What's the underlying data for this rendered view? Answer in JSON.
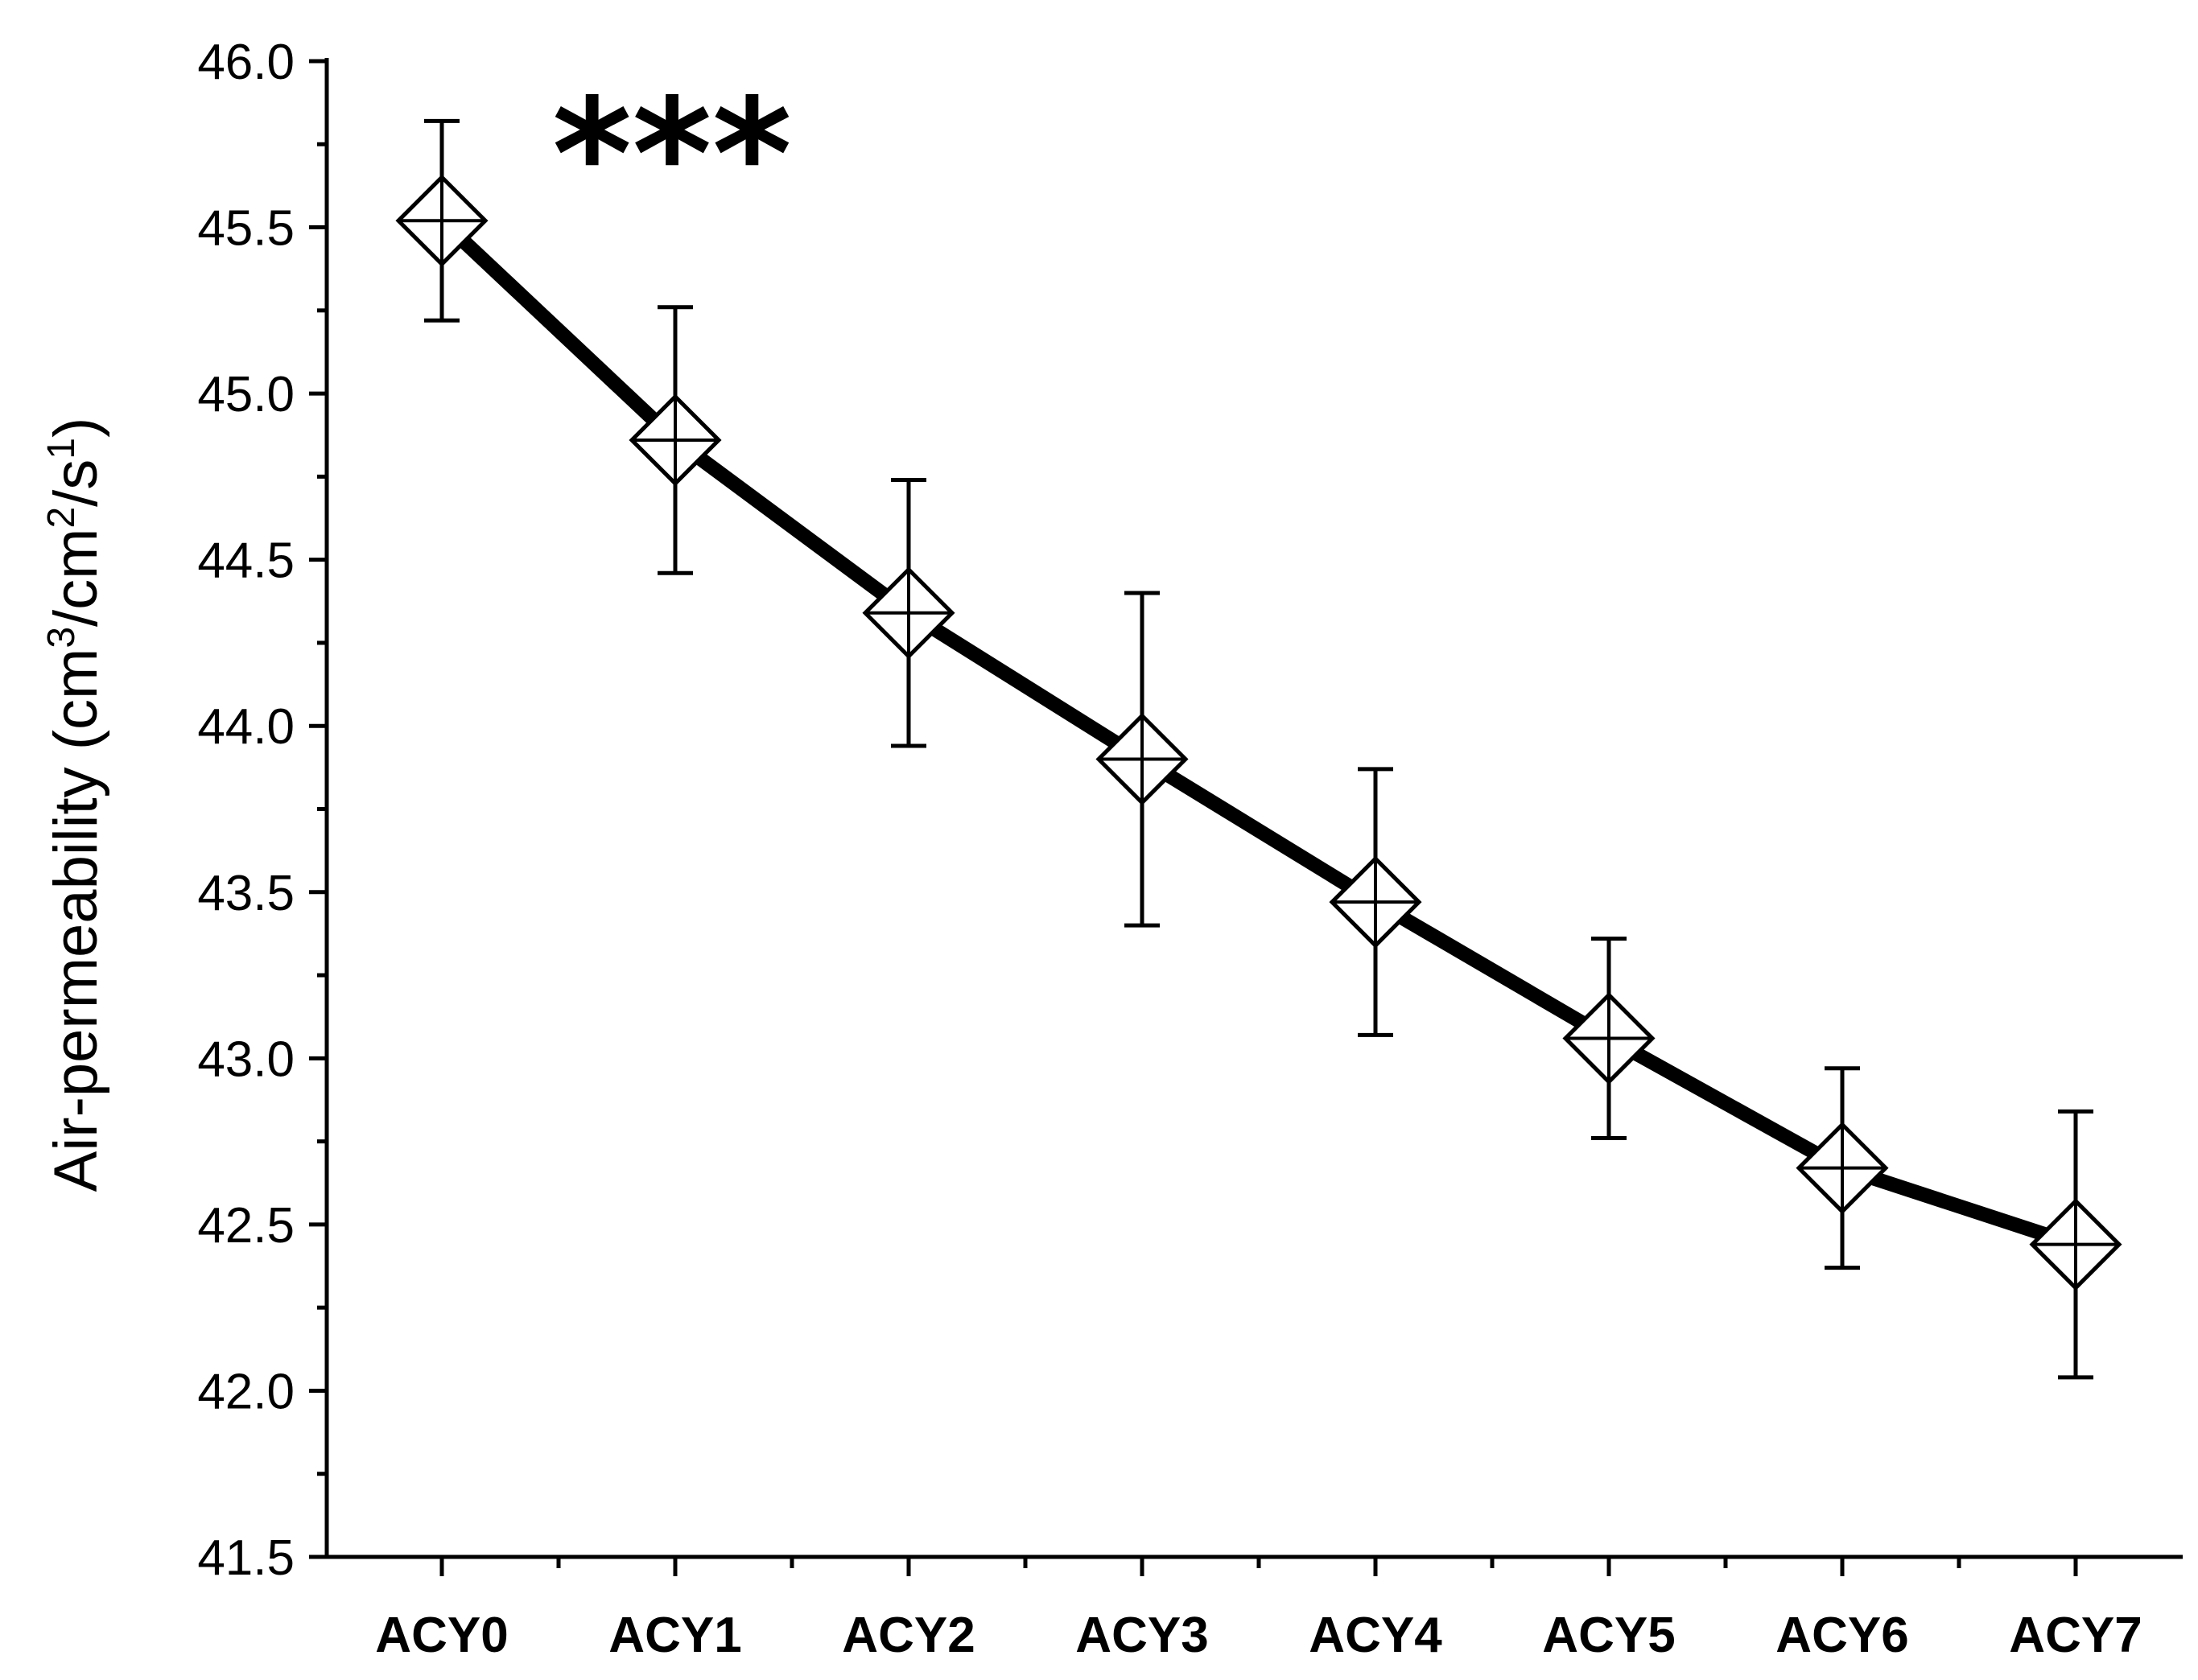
{
  "chart_data": {
    "type": "line",
    "title": "",
    "xlabel": "",
    "ylabel": "Air-permeability (cm³/cm²/s¹)",
    "ylabel_parts": {
      "prefix": "Air-permeability (cm",
      "sup1": "3",
      "mid1": "/cm",
      "sup2": "2",
      "mid2": "/s",
      "sup3": "1",
      "suffix": ")"
    },
    "categories": [
      "ACY0",
      "ACY1",
      "ACY2",
      "ACY3",
      "ACY4",
      "ACY5",
      "ACY6",
      "ACY7"
    ],
    "series": [
      {
        "name": "Air-permeability",
        "values": [
          45.52,
          44.86,
          44.34,
          43.9,
          43.47,
          43.06,
          42.67,
          42.44
        ],
        "error": [
          0.3,
          0.4,
          0.4,
          0.5,
          0.4,
          0.3,
          0.3,
          0.4
        ],
        "marker": "diamond-plus",
        "color": "#000000"
      }
    ],
    "ylim": [
      41.5,
      46.0
    ],
    "yticks": [
      "41.5",
      "42.0",
      "42.5",
      "43.0",
      "43.5",
      "44.0",
      "44.5",
      "45.0",
      "45.5",
      "46.0"
    ],
    "annotation": "***",
    "grid": false,
    "legend": "none"
  }
}
